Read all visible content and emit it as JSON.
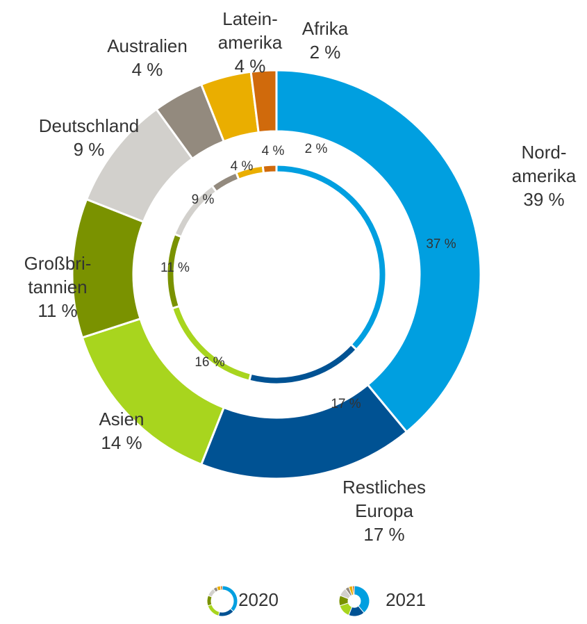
{
  "chart_data": {
    "type": "nested-donut",
    "categories": [
      [
        "Nord-",
        "amerika"
      ],
      [
        "Restliches",
        "Europa"
      ],
      [
        "Asien"
      ],
      [
        "Großbri-",
        "tannien"
      ],
      [
        "Deutschland"
      ],
      [
        "Australien"
      ],
      [
        "Latein-",
        "amerika"
      ],
      [
        "Afrika"
      ]
    ],
    "colors": [
      "#009fe0",
      "#005293",
      "#a8d51e",
      "#7a9200",
      "#d2d0cc",
      "#938a7e",
      "#eaae00",
      "#d06a0c"
    ],
    "series": [
      {
        "name": "2020",
        "ring": "inner",
        "values": [
          37,
          17,
          16,
          11,
          9,
          4,
          4,
          2
        ],
        "value_labels": [
          "37 %",
          "17 %",
          "16 %",
          "11 %",
          "9 %",
          "4 %",
          "4 %",
          "2 %"
        ]
      },
      {
        "name": "2021",
        "ring": "outer",
        "values": [
          39,
          17,
          14,
          11,
          9,
          4,
          4,
          2
        ],
        "value_labels": [
          "39 %",
          "17 %",
          "14 %",
          "11 %",
          "9 %",
          "4 %",
          "4 %",
          "2 %"
        ]
      }
    ]
  }
}
